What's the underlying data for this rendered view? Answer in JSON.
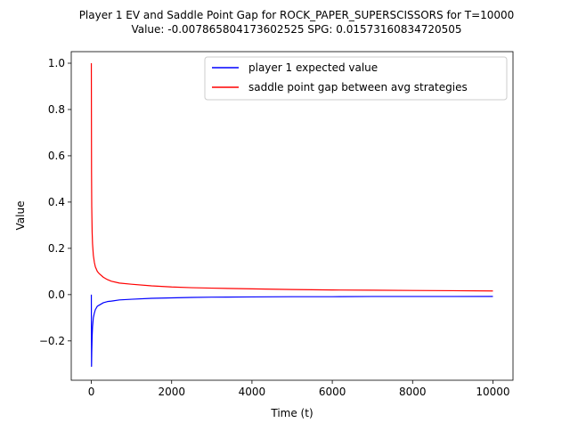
{
  "chart_data": {
    "type": "line",
    "title_line1": "Player 1 EV and Saddle Point Gap for ROCK_PAPER_SUPERSCISSORS for T=10000",
    "title_line2": "Value: -0.007865804173602525 SPG: 0.01573160834720505",
    "xlabel": "Time (t)",
    "ylabel": "Value",
    "xlim": [
      -500,
      10500
    ],
    "ylim": [
      -0.37,
      1.05
    ],
    "xticks": [
      0,
      2000,
      4000,
      6000,
      8000,
      10000
    ],
    "xtick_labels": [
      "0",
      "2000",
      "4000",
      "6000",
      "8000",
      "10000"
    ],
    "yticks": [
      -0.2,
      0.0,
      0.2,
      0.4,
      0.6,
      0.8,
      1.0
    ],
    "ytick_labels": [
      "−0.2",
      "0.0",
      "0.2",
      "0.4",
      "0.6",
      "0.8",
      "1.0"
    ],
    "grid": false,
    "legend_position": "top-right",
    "series": [
      {
        "name": "player 1 expected value",
        "color": "#0000ff",
        "x": [
          0,
          5,
          10,
          20,
          30,
          50,
          75,
          100,
          150,
          200,
          300,
          400,
          500,
          700,
          1000,
          1500,
          2000,
          2500,
          3000,
          4000,
          5000,
          6000,
          7000,
          8000,
          9000,
          10000
        ],
        "y": [
          0.0,
          -0.31,
          -0.25,
          -0.18,
          -0.14,
          -0.1,
          -0.08,
          -0.065,
          -0.05,
          -0.045,
          -0.035,
          -0.03,
          -0.028,
          -0.023,
          -0.02,
          -0.016,
          -0.014,
          -0.012,
          -0.011,
          -0.01,
          -0.009,
          -0.009,
          -0.008,
          -0.008,
          -0.008,
          -0.0079
        ]
      },
      {
        "name": "saddle point gap between avg strategies",
        "color": "#ff0000",
        "x": [
          0,
          5,
          10,
          20,
          30,
          50,
          75,
          100,
          150,
          200,
          300,
          400,
          500,
          700,
          1000,
          1500,
          2000,
          2500,
          3000,
          4000,
          5000,
          6000,
          7000,
          8000,
          9000,
          10000
        ],
        "y": [
          1.0,
          0.53,
          0.38,
          0.27,
          0.22,
          0.17,
          0.14,
          0.12,
          0.1,
          0.09,
          0.075,
          0.065,
          0.058,
          0.05,
          0.045,
          0.038,
          0.033,
          0.03,
          0.028,
          0.025,
          0.022,
          0.02,
          0.019,
          0.018,
          0.017,
          0.0157
        ]
      }
    ]
  }
}
